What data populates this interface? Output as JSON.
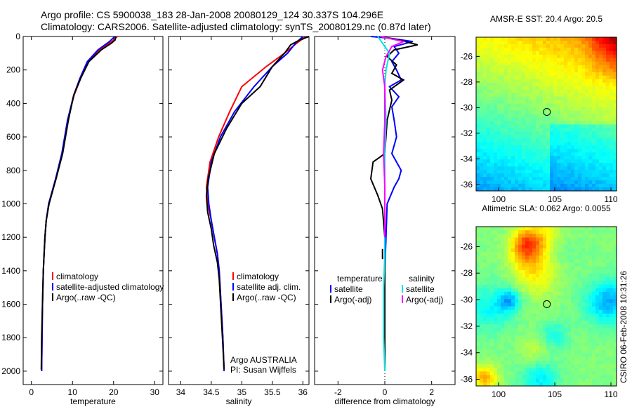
{
  "header": {
    "line1": "Argo profile: CS 5900038_183 28-Jan-2008 20080129_124 30.337S 104.296E",
    "line2": "Climatology: CARS2006. Satellite-adjusted climatology: synTS_20080129.nc (0.87d later)"
  },
  "side_note": "CSIRO 06-Feb-2008 10:31:26",
  "colors": {
    "climatology": "#ff0000",
    "satellite": "#0000ff",
    "argo": "#000000",
    "sal_satellite": "#00e5e5",
    "sal_argo": "#ff00ff"
  },
  "chart_data": [
    {
      "type": "line",
      "id": "temperature",
      "xlabel": "temperature",
      "ylabel": "",
      "xlim": [
        -2,
        32
      ],
      "ylim": [
        2080,
        0
      ],
      "xticks": [
        0,
        10,
        20,
        30
      ],
      "yticks": [
        0,
        200,
        400,
        600,
        800,
        1000,
        1200,
        1400,
        1600,
        1800,
        2000
      ],
      "legend": [
        "climatology",
        "satellite-adjusted climatology",
        "Argo(..raw -QC)"
      ],
      "series": [
        {
          "name": "climatology",
          "color": "#ff0000",
          "x": [
            20.9,
            19.6,
            16.5,
            13.8,
            12.0,
            10.4,
            8.8,
            7.5,
            6.0,
            4.2,
            3.6,
            3.3,
            3.1,
            2.9,
            2.7,
            2.6,
            2.5
          ],
          "y": [
            0,
            30,
            80,
            150,
            250,
            350,
            500,
            700,
            850,
            1000,
            1100,
            1200,
            1300,
            1400,
            1600,
            1800,
            2000
          ]
        },
        {
          "name": "satellite-adjusted climatology",
          "color": "#0000ff",
          "x": [
            20.3,
            19.0,
            16.2,
            13.6,
            11.8,
            10.3,
            8.8,
            7.4,
            5.9,
            4.2,
            3.6,
            3.3,
            3.1,
            2.9,
            2.7,
            2.6,
            2.5
          ],
          "y": [
            0,
            30,
            80,
            150,
            250,
            350,
            500,
            700,
            850,
            1000,
            1100,
            1200,
            1300,
            1400,
            1600,
            1800,
            2000
          ]
        },
        {
          "name": "Argo(..raw -QC)",
          "color": "#000000",
          "x": [
            20.5,
            20.4,
            19.5,
            17.0,
            14.0,
            12.0,
            10.3,
            9.0,
            7.6,
            6.0,
            4.3,
            3.6,
            3.3,
            3.1,
            2.9,
            2.7,
            2.5,
            2.4
          ],
          "y": [
            0,
            20,
            40,
            80,
            150,
            250,
            350,
            500,
            700,
            850,
            1000,
            1100,
            1200,
            1300,
            1400,
            1600,
            1800,
            1990
          ]
        }
      ]
    },
    {
      "type": "line",
      "id": "salinity",
      "xlabel": "salinity",
      "ylabel": "",
      "xlim": [
        33.8,
        36.1
      ],
      "ylim": [
        2080,
        0
      ],
      "xticks": [
        34,
        34.5,
        35,
        35.5,
        36
      ],
      "legend": [
        "climatology",
        "satellite adj. clim.",
        "Argo(..raw -QC)"
      ],
      "annotations": [
        "Argo AUSTRALIA",
        "PI: Susan Wijffels"
      ],
      "series": [
        {
          "name": "climatology",
          "color": "#ff0000",
          "x": [
            36.05,
            35.9,
            35.7,
            35.4,
            35.0,
            34.8,
            34.62,
            34.48,
            34.42,
            34.44,
            34.5,
            34.55,
            34.6,
            34.63,
            34.66,
            34.69,
            34.71
          ],
          "y": [
            0,
            40,
            100,
            180,
            300,
            450,
            600,
            750,
            900,
            1000,
            1100,
            1200,
            1300,
            1400,
            1600,
            1800,
            2000
          ]
        },
        {
          "name": "satellite adj. clim.",
          "color": "#0000ff",
          "x": [
            36.0,
            35.88,
            35.75,
            35.5,
            35.2,
            34.88,
            34.65,
            34.5,
            34.44,
            34.46,
            34.5,
            34.55,
            34.6,
            34.63,
            34.66,
            34.69,
            34.71
          ],
          "y": [
            0,
            40,
            100,
            180,
            300,
            450,
            600,
            750,
            900,
            1000,
            1100,
            1200,
            1300,
            1400,
            1600,
            1800,
            2000
          ]
        },
        {
          "name": "Argo(..raw -QC)",
          "color": "#000000",
          "x": [
            36.1,
            35.95,
            35.8,
            35.7,
            35.5,
            35.3,
            35.0,
            34.75,
            34.55,
            34.45,
            34.42,
            34.44,
            34.5,
            34.54,
            34.6,
            34.63,
            34.66,
            34.69,
            34.71
          ],
          "y": [
            0,
            20,
            50,
            100,
            180,
            300,
            400,
            550,
            700,
            850,
            950,
            1050,
            1150,
            1250,
            1350,
            1450,
            1650,
            1850,
            1990
          ]
        }
      ]
    },
    {
      "type": "line",
      "id": "difference",
      "xlabel": "difference from climatology",
      "ylabel": "",
      "xlim": [
        -3,
        3
      ],
      "ylim": [
        2080,
        0
      ],
      "xticks": [
        -2,
        0,
        2
      ],
      "legend": [
        "temperature",
        "satellite",
        "Argo(-adj)",
        "salinity",
        "satellite",
        "Argo(-adj)"
      ],
      "series": [
        {
          "name": "temperature satellite",
          "color": "#0000ff",
          "x": [
            -0.6,
            0.2,
            1.2,
            0.4,
            0.6,
            0.3,
            0.5,
            0.7,
            0.2,
            0.6,
            0.3,
            0.4,
            0.5,
            0.3,
            0.7,
            0.6,
            0.4,
            0.1,
            0.05,
            0.0,
            0.0,
            0.0
          ],
          "y": [
            0,
            10,
            30,
            60,
            100,
            150,
            200,
            260,
            300,
            360,
            420,
            500,
            600,
            700,
            800,
            850,
            900,
            1000,
            1200,
            1400,
            1700,
            2000
          ]
        },
        {
          "name": "temperature Argo(-adj)",
          "color": "#000000",
          "x": [
            -0.2,
            0.6,
            1.4,
            0.4,
            0.1,
            0.5,
            0.3,
            0.8,
            0.2,
            0.3,
            0.1,
            0.0,
            -0.5,
            -0.6,
            -0.3,
            -0.1,
            0.0,
            0.0,
            0.0,
            0.0
          ],
          "y": [
            0,
            20,
            50,
            80,
            120,
            170,
            220,
            260,
            320,
            380,
            500,
            700,
            750,
            850,
            950,
            1030,
            1200,
            1500,
            1800,
            1990
          ]
        },
        {
          "name": "salinity satellite",
          "color": "#00e5e5",
          "x": [
            -0.3,
            -0.1,
            0.2,
            0.05,
            0.0,
            0.05,
            0.0,
            0.0,
            0.0,
            0.0,
            -0.05,
            -0.05,
            0.0
          ],
          "y": [
            0,
            40,
            100,
            200,
            300,
            500,
            700,
            900,
            1100,
            1300,
            1500,
            1800,
            2000
          ]
        },
        {
          "name": "salinity Argo(-adj)",
          "color": "#ff00ff",
          "x": [
            -0.2,
            0.8,
            0.3,
            0.05,
            -0.1,
            0.0,
            0.0,
            -0.05,
            0.0,
            0.0,
            0.0
          ],
          "y": [
            0,
            30,
            60,
            120,
            200,
            300,
            500,
            700,
            900,
            1100,
            1200
          ]
        },
        {
          "name": "temperature Argo(-adj) (lower)",
          "color": "#000000",
          "x": [
            -0.1,
            -0.1
          ],
          "y": [
            1270,
            1330
          ]
        }
      ]
    },
    {
      "type": "heatmap",
      "id": "sst",
      "title": "AMSR-E SST: 20.4  Argo: 20.5",
      "xlim": [
        98,
        110.5
      ],
      "ylim": [
        -36.5,
        -24.5
      ],
      "xticks": [
        100,
        105,
        110
      ],
      "yticks": [
        -26,
        -28,
        -30,
        -32,
        -34,
        -36
      ],
      "marker": {
        "lon": 104.296,
        "lat": -30.337
      }
    },
    {
      "type": "heatmap",
      "id": "sla",
      "title": "Altimetric SLA: 0.062  Argo: 0.0055",
      "xlim": [
        98,
        110.5
      ],
      "ylim": [
        -36.5,
        -24.5
      ],
      "xticks": [
        100,
        105,
        110
      ],
      "yticks": [
        -26,
        -28,
        -30,
        -32,
        -34,
        -36
      ],
      "marker": {
        "lon": 104.296,
        "lat": -30.337
      }
    }
  ]
}
